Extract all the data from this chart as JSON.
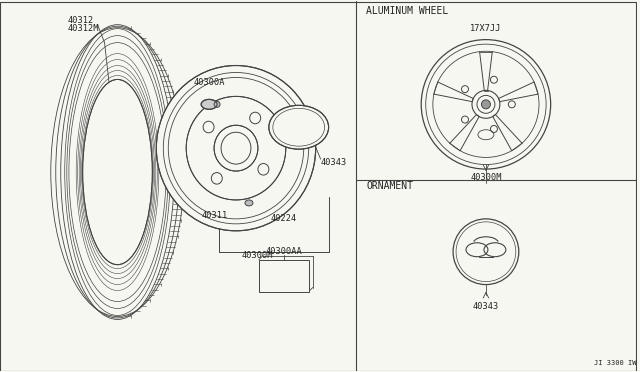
{
  "bg_color": "#f7f7f2",
  "line_color": "#444444",
  "text_color": "#222222",
  "section_labels": {
    "aluminum_wheel": "ALUMINUM WHEEL",
    "ornament": "ORNAMENT",
    "wheel_size": "17X7JJ",
    "diagram_ref": "JI 3300 IW"
  },
  "part_labels": {
    "tire": [
      "40312",
      "40312M"
    ],
    "wheel_assy": "40300M",
    "valve": "40311",
    "cap": "40224",
    "lug_nut": "40300A",
    "cap_center": "40343",
    "label_card": "40300AA",
    "wheel_detail": "40300M",
    "ornament_part": "40343"
  },
  "font_size_label": 6.2,
  "font_size_section": 7.0
}
